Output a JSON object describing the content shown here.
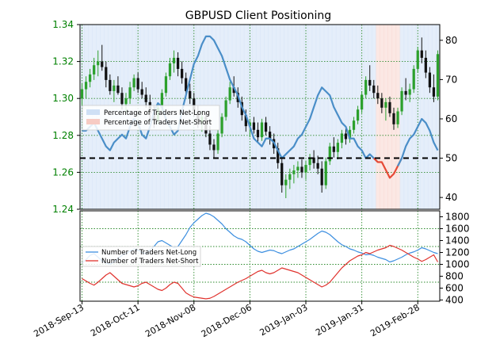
{
  "chart_data": [
    {
      "type": "candlestick+line",
      "title": "GBPUSD Client Positioning",
      "left_axis": {
        "ticks": [
          "1.24",
          "1.26",
          "1.28",
          "1.30",
          "1.32",
          "1.34"
        ],
        "range": [
          1.24,
          1.34
        ],
        "color": "#008000"
      },
      "right_axis": {
        "ticks": [
          "40",
          "50",
          "60",
          "70",
          "80"
        ],
        "range": [
          37,
          84
        ]
      },
      "threshold": 50,
      "legend": [
        "Percentage of Traders Net-Long",
        "Percentage of Traders Net-Short"
      ],
      "candles": [
        [
          1.3,
          1.308,
          1.296,
          1.305
        ],
        [
          1.305,
          1.312,
          1.3,
          1.309
        ],
        [
          1.309,
          1.316,
          1.306,
          1.313
        ],
        [
          1.313,
          1.322,
          1.31,
          1.318
        ],
        [
          1.318,
          1.326,
          1.312,
          1.32
        ],
        [
          1.32,
          1.329,
          1.315,
          1.317
        ],
        [
          1.317,
          1.32,
          1.306,
          1.31
        ],
        [
          1.31,
          1.313,
          1.302,
          1.304
        ],
        [
          1.304,
          1.31,
          1.298,
          1.307
        ],
        [
          1.307,
          1.312,
          1.302,
          1.303
        ],
        [
          1.303,
          1.306,
          1.294,
          1.297
        ],
        [
          1.297,
          1.303,
          1.292,
          1.3
        ],
        [
          1.3,
          1.309,
          1.297,
          1.306
        ],
        [
          1.306,
          1.313,
          1.304,
          1.311
        ],
        [
          1.311,
          1.314,
          1.303,
          1.305
        ],
        [
          1.305,
          1.309,
          1.3,
          1.302
        ],
        [
          1.302,
          1.306,
          1.295,
          1.298
        ],
        [
          1.298,
          1.302,
          1.289,
          1.292
        ],
        [
          1.292,
          1.296,
          1.284,
          1.288
        ],
        [
          1.288,
          1.297,
          1.286,
          1.295
        ],
        [
          1.295,
          1.305,
          1.293,
          1.303
        ],
        [
          1.303,
          1.314,
          1.301,
          1.312
        ],
        [
          1.312,
          1.322,
          1.31,
          1.319
        ],
        [
          1.319,
          1.326,
          1.314,
          1.322
        ],
        [
          1.322,
          1.325,
          1.312,
          1.316
        ],
        [
          1.316,
          1.32,
          1.308,
          1.311
        ],
        [
          1.311,
          1.314,
          1.301,
          1.304
        ],
        [
          1.304,
          1.308,
          1.297,
          1.3
        ],
        [
          1.3,
          1.303,
          1.29,
          1.293
        ],
        [
          1.293,
          1.296,
          1.284,
          1.287
        ],
        [
          1.287,
          1.293,
          1.282,
          1.29
        ],
        [
          1.29,
          1.292,
          1.279,
          1.281
        ],
        [
          1.281,
          1.285,
          1.272,
          1.275
        ],
        [
          1.275,
          1.278,
          1.268,
          1.272
        ],
        [
          1.272,
          1.283,
          1.27,
          1.281
        ],
        [
          1.281,
          1.292,
          1.279,
          1.29
        ],
        [
          1.29,
          1.301,
          1.288,
          1.299
        ],
        [
          1.299,
          1.309,
          1.297,
          1.306
        ],
        [
          1.306,
          1.312,
          1.301,
          1.303
        ],
        [
          1.303,
          1.306,
          1.295,
          1.298
        ],
        [
          1.298,
          1.301,
          1.288,
          1.291
        ],
        [
          1.291,
          1.294,
          1.282,
          1.285
        ],
        [
          1.285,
          1.289,
          1.279,
          1.287
        ],
        [
          1.287,
          1.29,
          1.281,
          1.283
        ],
        [
          1.283,
          1.287,
          1.276,
          1.279
        ],
        [
          1.279,
          1.289,
          1.277,
          1.287
        ],
        [
          1.287,
          1.29,
          1.28,
          1.282
        ],
        [
          1.282,
          1.285,
          1.275,
          1.278
        ],
        [
          1.278,
          1.281,
          1.27,
          1.273
        ],
        [
          1.273,
          1.276,
          1.262,
          1.265
        ],
        [
          1.265,
          1.268,
          1.249,
          1.253
        ],
        [
          1.253,
          1.259,
          1.246,
          1.256
        ],
        [
          1.256,
          1.262,
          1.251,
          1.259
        ],
        [
          1.259,
          1.264,
          1.254,
          1.261
        ],
        [
          1.261,
          1.266,
          1.257,
          1.263
        ],
        [
          1.263,
          1.267,
          1.257,
          1.26
        ],
        [
          1.26,
          1.266,
          1.256,
          1.264
        ],
        [
          1.264,
          1.27,
          1.261,
          1.268
        ],
        [
          1.268,
          1.272,
          1.262,
          1.265
        ],
        [
          1.265,
          1.269,
          1.259,
          1.262
        ],
        [
          1.262,
          1.266,
          1.249,
          1.253
        ],
        [
          1.253,
          1.268,
          1.251,
          1.266
        ],
        [
          1.266,
          1.276,
          1.264,
          1.274
        ],
        [
          1.274,
          1.279,
          1.268,
          1.271
        ],
        [
          1.271,
          1.278,
          1.267,
          1.276
        ],
        [
          1.276,
          1.283,
          1.273,
          1.281
        ],
        [
          1.281,
          1.284,
          1.275,
          1.278
        ],
        [
          1.278,
          1.285,
          1.276,
          1.283
        ],
        [
          1.283,
          1.29,
          1.281,
          1.288
        ],
        [
          1.288,
          1.296,
          1.286,
          1.294
        ],
        [
          1.294,
          1.304,
          1.292,
          1.302
        ],
        [
          1.302,
          1.312,
          1.3,
          1.31
        ],
        [
          1.31,
          1.318,
          1.304,
          1.307
        ],
        [
          1.307,
          1.31,
          1.3,
          1.303
        ],
        [
          1.303,
          1.307,
          1.297,
          1.3
        ],
        [
          1.3,
          1.303,
          1.292,
          1.295
        ],
        [
          1.295,
          1.3,
          1.288,
          1.298
        ],
        [
          1.298,
          1.301,
          1.29,
          1.292
        ],
        [
          1.292,
          1.295,
          1.283,
          1.286
        ],
        [
          1.286,
          1.295,
          1.284,
          1.293
        ],
        [
          1.293,
          1.306,
          1.291,
          1.304
        ],
        [
          1.304,
          1.311,
          1.299,
          1.302
        ],
        [
          1.302,
          1.308,
          1.298,
          1.305
        ],
        [
          1.305,
          1.318,
          1.303,
          1.316
        ],
        [
          1.316,
          1.328,
          1.314,
          1.326
        ],
        [
          1.326,
          1.333,
          1.319,
          1.322
        ],
        [
          1.322,
          1.326,
          1.311,
          1.314
        ],
        [
          1.314,
          1.317,
          1.303,
          1.306
        ],
        [
          1.306,
          1.313,
          1.298,
          1.301
        ],
        [
          1.301,
          1.326,
          1.299,
          1.324
        ]
      ],
      "net_long_pct": [
        57,
        57,
        58,
        59,
        57,
        55,
        53,
        52,
        54,
        55,
        56,
        55,
        58,
        60,
        59,
        56,
        55,
        58,
        62,
        64,
        63,
        60,
        58,
        56,
        57,
        62,
        66,
        70,
        74,
        76,
        79,
        81,
        81,
        80,
        78,
        76,
        73,
        70,
        68,
        66,
        63,
        61,
        58,
        55,
        54,
        53,
        55,
        55,
        54,
        52,
        50,
        51,
        52,
        53,
        55,
        56,
        58,
        60,
        63,
        66,
        68,
        67,
        66,
        63,
        61,
        59,
        58,
        55,
        55,
        53,
        52,
        50,
        51,
        50,
        49,
        49,
        47,
        45,
        46,
        48,
        50,
        53,
        55,
        56,
        58,
        60,
        59,
        57,
        54,
        52
      ],
      "legend_dup_note": ""
    },
    {
      "type": "line",
      "right_axis": {
        "ticks": [
          "400",
          "600",
          "800",
          "1000",
          "1200",
          "1400",
          "1600",
          "1800"
        ],
        "range": [
          380,
          1900
        ]
      },
      "legend": [
        "Number of Traders Net-Long",
        "Number of Traders Net-Short"
      ],
      "series": [
        {
          "name": "Number of Traders Net-Long",
          "color": "#3d8fe0",
          "values": [
            1020,
            1080,
            1150,
            1180,
            1120,
            1060,
            1020,
            1000,
            1040,
            1100,
            1150,
            1180,
            1220,
            1260,
            1240,
            1200,
            1180,
            1240,
            1300,
            1380,
            1400,
            1360,
            1320,
            1280,
            1300,
            1400,
            1500,
            1620,
            1700,
            1760,
            1820,
            1860,
            1840,
            1800,
            1740,
            1680,
            1600,
            1540,
            1480,
            1440,
            1420,
            1380,
            1320,
            1260,
            1220,
            1200,
            1220,
            1240,
            1230,
            1200,
            1180,
            1210,
            1240,
            1260,
            1300,
            1340,
            1380,
            1420,
            1470,
            1520,
            1560,
            1540,
            1500,
            1440,
            1380,
            1330,
            1300,
            1260,
            1240,
            1210,
            1190,
            1160,
            1170,
            1150,
            1120,
            1100,
            1080,
            1040,
            1060,
            1090,
            1120,
            1160,
            1190,
            1210,
            1240,
            1280,
            1260,
            1230,
            1200,
            1180
          ]
        },
        {
          "name": "Number of Traders Net-Short",
          "color": "#e0322d",
          "values": [
            760,
            720,
            680,
            650,
            700,
            760,
            820,
            860,
            800,
            740,
            680,
            660,
            640,
            620,
            640,
            680,
            700,
            660,
            620,
            580,
            560,
            600,
            660,
            700,
            680,
            600,
            520,
            480,
            450,
            440,
            430,
            420,
            430,
            460,
            500,
            540,
            580,
            620,
            660,
            700,
            730,
            760,
            800,
            840,
            880,
            900,
            860,
            840,
            860,
            900,
            940,
            920,
            900,
            880,
            860,
            820,
            780,
            740,
            700,
            660,
            620,
            650,
            700,
            780,
            860,
            940,
            1000,
            1060,
            1100,
            1140,
            1160,
            1200,
            1180,
            1210,
            1240,
            1260,
            1280,
            1320,
            1300,
            1270,
            1240,
            1200,
            1160,
            1120,
            1090,
            1050,
            1080,
            1120,
            1160,
            1040
          ]
        }
      ]
    }
  ],
  "x_axis": {
    "tick_labels": [
      "2018-Sep-13",
      "2018-Oct-11",
      "2018-Nov-08",
      "2018-Dec-06",
      "2019-Jan-03",
      "2019-Jan-31",
      "2019-Feb-28"
    ],
    "tick_index": [
      0,
      14,
      28,
      42,
      56,
      70,
      84
    ]
  },
  "colors": {
    "up_candle": "#2ca02c",
    "down_candle": "#111111",
    "long_line": "#4a8ec8",
    "short_line": "#e64a36",
    "long_fill": "#cfe0f5",
    "short_fill": "#f7cbc3",
    "grid": "#2e8b2e"
  }
}
